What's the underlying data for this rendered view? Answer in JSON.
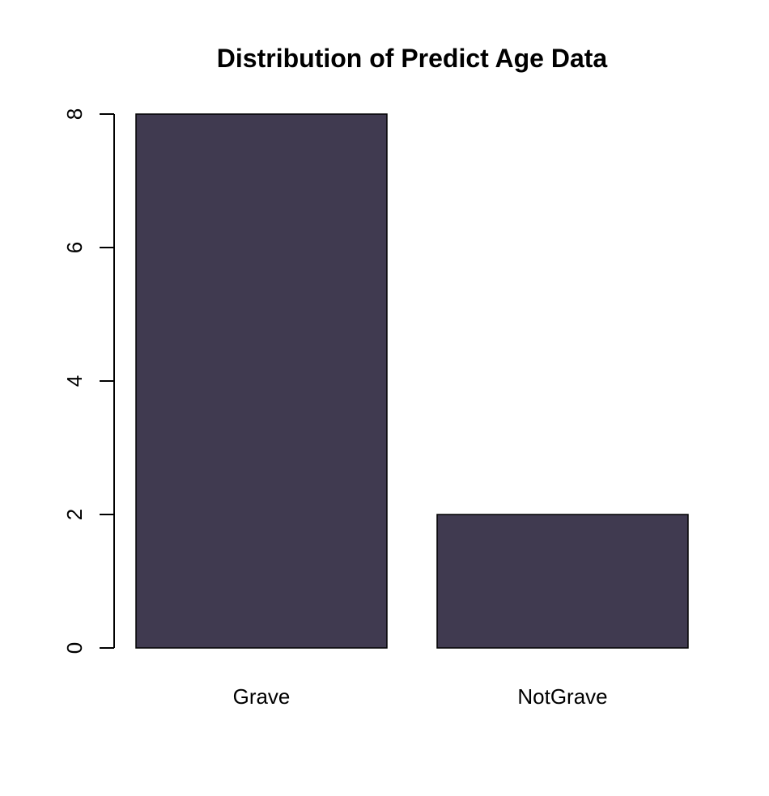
{
  "chart_data": {
    "type": "bar",
    "title": "Distribution of Predict Age Data",
    "xlabel": "",
    "ylabel": "",
    "categories": [
      "Grave",
      "NotGrave"
    ],
    "values": [
      8,
      2
    ],
    "ylim": [
      0,
      8
    ],
    "yticks": [
      "0",
      "2",
      "4",
      "6",
      "8"
    ],
    "grid": false,
    "bar_color": "#403a50",
    "border_color": "#000000"
  }
}
